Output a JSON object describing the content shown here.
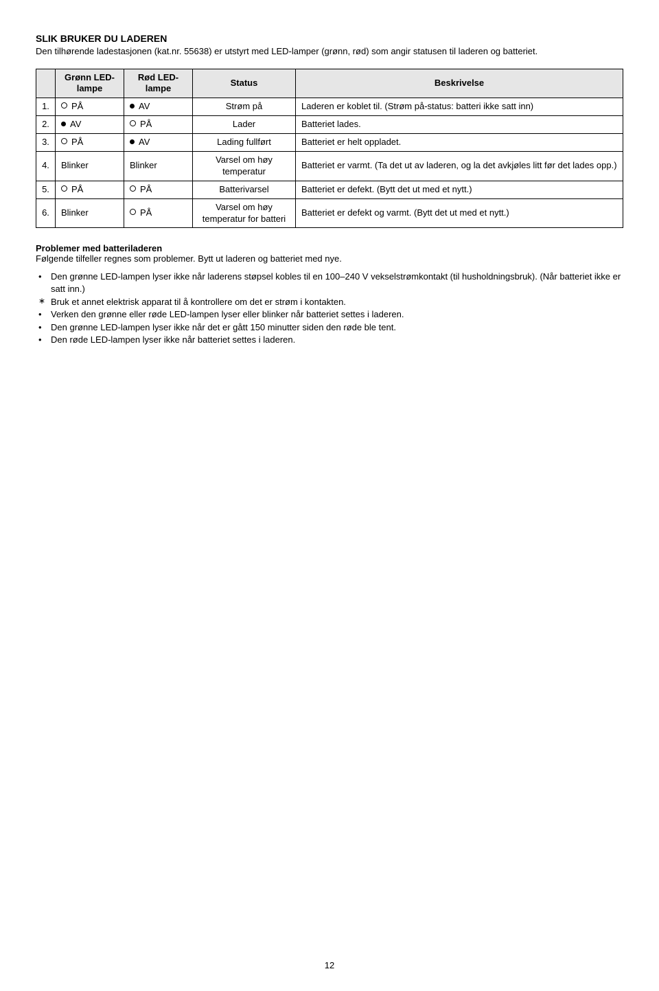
{
  "title": "SLIK BRUKER DU LADEREN",
  "intro": "Den tilhørende ladestasjonen (kat.nr. 55638) er utstyrt med LED-lamper (grønn, rød) som angir statusen til laderen og batteriet.",
  "table": {
    "headers": {
      "green": "Grønn LED-lampe",
      "red": "Rød LED-lampe",
      "status": "Status",
      "desc": "Beskrivelse"
    },
    "rows": [
      {
        "n": "1.",
        "g": "PÅ",
        "gSym": "off",
        "r": "AV",
        "rSym": "on",
        "status": "Strøm på",
        "desc": "Laderen er koblet til. (Strøm på-status: batteri ikke satt inn)"
      },
      {
        "n": "2.",
        "g": "AV",
        "gSym": "on",
        "r": "PÅ",
        "rSym": "off",
        "status": "Lader",
        "desc": "Batteriet lades."
      },
      {
        "n": "3.",
        "g": "PÅ",
        "gSym": "off",
        "r": "AV",
        "rSym": "on",
        "status": "Lading fullført",
        "desc": "Batteriet er helt oppladet."
      },
      {
        "n": "4.",
        "g": "Blinker",
        "gSym": "",
        "r": "Blinker",
        "rSym": "",
        "status": "Varsel om høy temperatur",
        "desc": "Batteriet er varmt. (Ta det ut av laderen, og la det avkjøles litt før det lades opp.)"
      },
      {
        "n": "5.",
        "g": "PÅ",
        "gSym": "off",
        "r": "PÅ",
        "rSym": "off",
        "status": "Batterivarsel",
        "desc": "Batteriet er defekt. (Bytt det ut med et nytt.)"
      },
      {
        "n": "6.",
        "g": "Blinker",
        "gSym": "",
        "r": "PÅ",
        "rSym": "off",
        "status": "Varsel om høy temperatur for batteri",
        "desc": "Batteriet er defekt og varmt. (Bytt det ut med et nytt.)"
      }
    ]
  },
  "problems": {
    "heading": "Problemer med batteriladeren",
    "sub": "Følgende tilfeller regnes som problemer. Bytt ut laderen og batteriet med nye.",
    "items": [
      {
        "text": "Den grønne LED-lampen lyser ikke når laderens støpsel kobles til en 100–240 V vekselstrømkontakt (til husholdningsbruk). (Når batteriet ikke er satt inn.)",
        "star": false
      },
      {
        "text": "Bruk et annet elektrisk apparat til å kontrollere om det er strøm i kontakten.",
        "star": true
      },
      {
        "text": "Verken den grønne eller røde LED-lampen lyser eller blinker når batteriet settes i laderen.",
        "star": false
      },
      {
        "text": "Den grønne LED-lampen lyser ikke når det er gått 150 minutter siden den røde ble tent.",
        "star": false
      },
      {
        "text": "Den røde LED-lampen lyser ikke når batteriet settes i laderen.",
        "star": false
      }
    ]
  },
  "pageNumber": "12"
}
